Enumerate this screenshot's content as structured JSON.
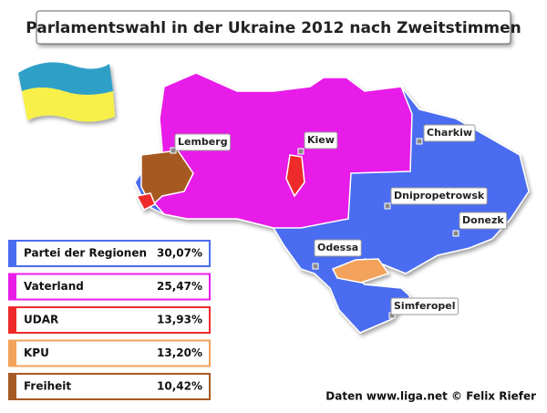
{
  "title": "Parlamentswahl in der Ukraine 2012 nach Zweitstimmen",
  "cities": [
    {
      "label": "Lemberg"
    },
    {
      "label": "Kiew"
    },
    {
      "label": "Charkiw"
    },
    {
      "label": "Dnipropetrowsk"
    },
    {
      "label": "Donezk"
    },
    {
      "label": "Odessa"
    },
    {
      "label": "Simferopel"
    }
  ],
  "legend": [
    {
      "party": "Partei der Regionen",
      "share": "30,07%",
      "color": "#4a6cf0"
    },
    {
      "party": "Vaterland",
      "share": "25,47%",
      "color": "#e81ee8"
    },
    {
      "party": "UDAR",
      "share": "13,93%",
      "color": "#ee2a2a"
    },
    {
      "party": "KPU",
      "share": "13,20%",
      "color": "#f2a25a"
    },
    {
      "party": "Freiheit",
      "share": "10,42%",
      "color": "#a65a24"
    }
  ],
  "credit": "Daten www.liga.net © Felix Riefer"
}
